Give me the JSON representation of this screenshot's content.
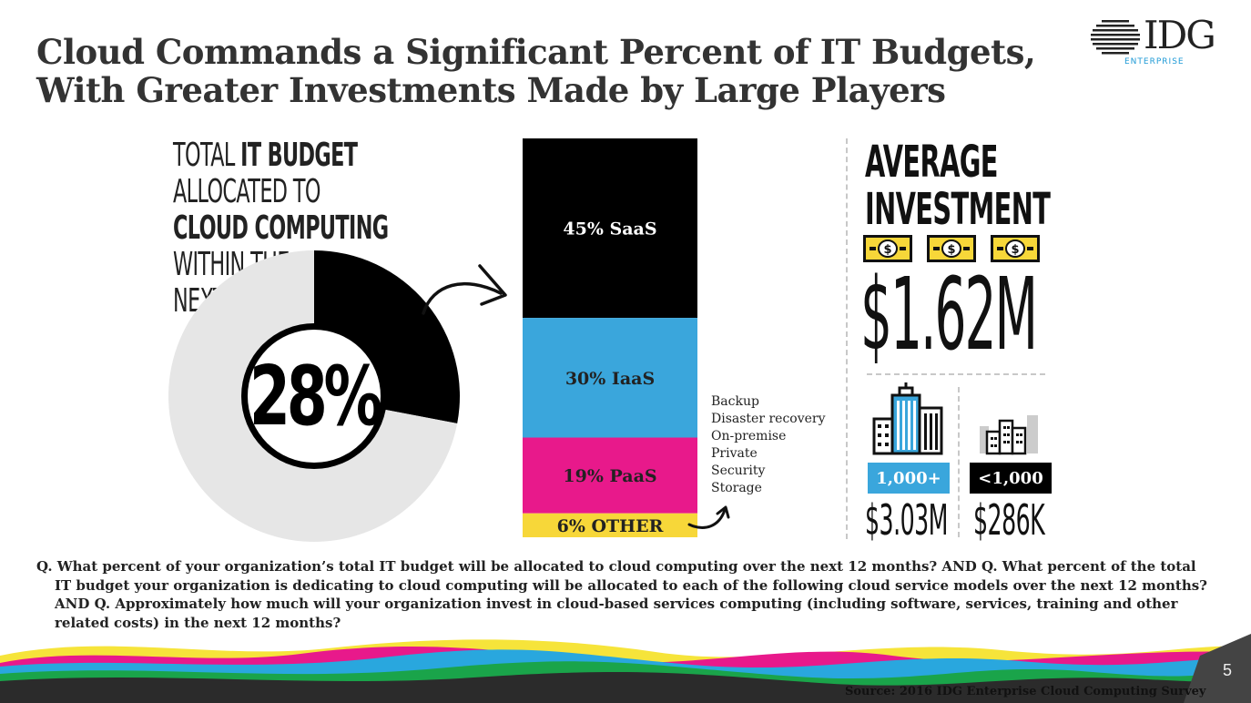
{
  "slide": {
    "title_line1": "Cloud Commands a Significant Percent of IT Budgets,",
    "title_line2": "With Greater Investments Made by Large Players",
    "logo_main": "IDG",
    "logo_sub": "ENTERPRISE",
    "page_number": "5",
    "source": "Source: 2016 IDG Enterprise Cloud Computing Survey",
    "question": "Q. What percent of your organization’s total IT budget will be allocated to cloud computing over the next 12 months? AND Q. What percent of the total IT budget your organization is dedicating to cloud computing will be allocated to each of the following cloud service models over the next 12 months? AND Q. Approximately how much will your organization invest in cloud-based services computing (including software, services, training and other related costs) in the next 12 months?"
  },
  "pie_label": {
    "l1a": "TOTAL ",
    "l1b": "IT BUDGET",
    "l2": "ALLOCATED TO",
    "l3": "CLOUD COMPUTING",
    "l4": "WITHIN THE",
    "l5": "NEXT YEAR"
  },
  "investment": {
    "title_line1": "AVERAGE",
    "title_line2": "INVESTMENT",
    "bill_symbol": "$",
    "average": "$1.62M",
    "large_label": "1,000+",
    "large_value": "$3.03M",
    "small_label": "<1,000",
    "small_value": "$286K"
  },
  "other_items": [
    "Backup",
    "Disaster recovery",
    "On-premise",
    "Private",
    "Security",
    "Storage"
  ],
  "chart_data": [
    {
      "type": "pie",
      "values": [
        28,
        72
      ],
      "center_label": "28%",
      "colors": [
        "#000000",
        "#e6e6e6"
      ]
    },
    {
      "type": "bar",
      "stacked": true,
      "categories": [
        "SaaS",
        "IaaS",
        "PaaS",
        "OTHER"
      ],
      "values": [
        45,
        30,
        19,
        6
      ],
      "labels": [
        "45% SaaS",
        "30% IaaS",
        "19% PaaS",
        "6% OTHER"
      ],
      "colors": [
        "#000000",
        "#3aa6dc",
        "#e8198b",
        "#f7d739"
      ],
      "label_colors": [
        "#ffffff",
        "#222222",
        "#222222",
        "#222222"
      ]
    }
  ],
  "colors": {
    "accent_blue": "#3aa6dc",
    "accent_black": "#111111",
    "bill_yellow": "#f7d739"
  }
}
